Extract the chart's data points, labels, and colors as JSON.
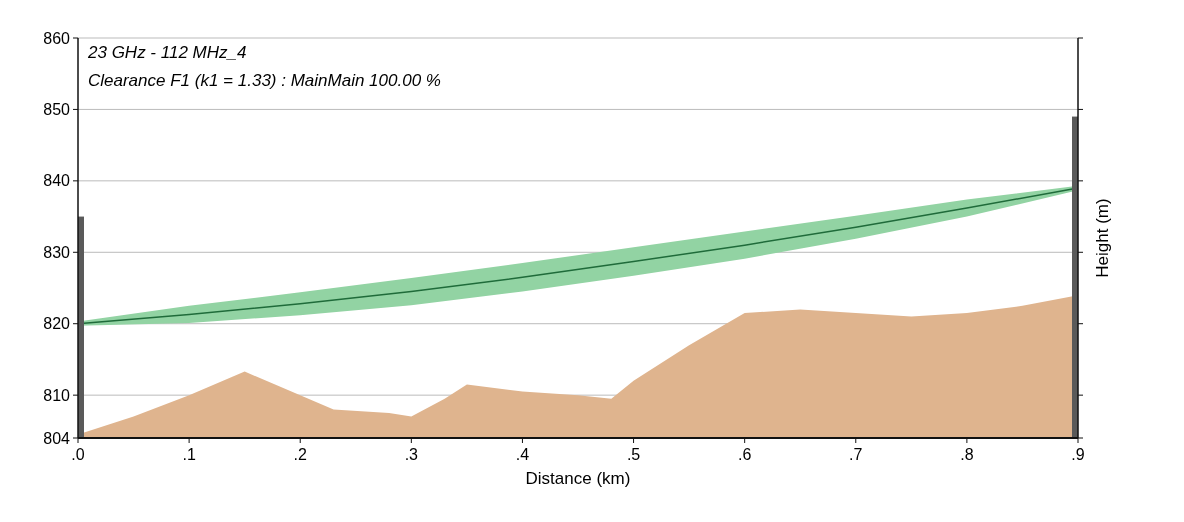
{
  "chart_data": {
    "type": "area",
    "xlabel": "Distance (km)",
    "ylabel": "Height (m)",
    "annotations": [
      "23 GHz - 112 MHz_4",
      "Clearance F1 (k1 = 1.33) : MainMain 100.00 %"
    ],
    "xlim": [
      0,
      0.9
    ],
    "ylim": [
      804,
      860
    ],
    "xticks": [
      {
        "value": 0,
        "label": ".0"
      },
      {
        "value": 0.1,
        "label": ".1"
      },
      {
        "value": 0.2,
        "label": ".2"
      },
      {
        "value": 0.3,
        "label": ".3"
      },
      {
        "value": 0.4,
        "label": ".4"
      },
      {
        "value": 0.5,
        "label": ".5"
      },
      {
        "value": 0.6,
        "label": ".6"
      },
      {
        "value": 0.7,
        "label": ".7"
      },
      {
        "value": 0.8,
        "label": ".8"
      },
      {
        "value": 0.9,
        "label": ".9"
      }
    ],
    "yticks": [
      804,
      810,
      820,
      830,
      840,
      850,
      860
    ],
    "grid": "y",
    "series": [
      {
        "color": "#dfb48e",
        "x": [
          0,
          0.05,
          0.1,
          0.15,
          0.2,
          0.23,
          0.28,
          0.3,
          0.33,
          0.35,
          0.4,
          0.45,
          0.48,
          0.5,
          0.55,
          0.6,
          0.65,
          0.7,
          0.75,
          0.8,
          0.85,
          0.9
        ],
        "values": [
          804.5,
          807,
          810,
          813.3,
          810,
          808,
          807.5,
          807,
          809.5,
          811.5,
          810.5,
          810,
          809.5,
          812,
          817,
          821.5,
          822,
          821.5,
          821,
          821.5,
          822.5,
          824
        ]
      },
      {
        "type": "line",
        "color": "#1f6b3a",
        "x": [
          0,
          0.1,
          0.2,
          0.3,
          0.4,
          0.5,
          0.6,
          0.7,
          0.8,
          0.9
        ],
        "values": [
          820,
          821.3,
          822.8,
          824.5,
          826.5,
          828.7,
          831,
          833.5,
          836.2,
          839
        ],
        "lower": [
          819.7,
          820.1,
          821.2,
          822.6,
          824.5,
          826.7,
          829.1,
          831.9,
          835,
          838.7
        ],
        "upper": [
          820.3,
          822.5,
          824.4,
          826.4,
          828.5,
          830.7,
          832.9,
          835.1,
          837.4,
          839.3
        ]
      },
      {
        "type": "bar",
        "color": "#5a5a5a",
        "x": [
          0,
          0.9
        ],
        "values": [
          835,
          849
        ]
      }
    ]
  }
}
